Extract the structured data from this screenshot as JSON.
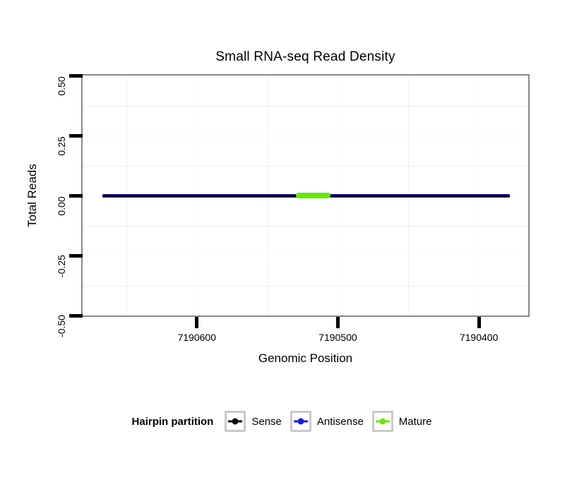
{
  "page": {
    "background": "#ffffff"
  },
  "chart_data": {
    "type": "line",
    "title": "Small RNA-seq Read Density",
    "x_axis": {
      "label": "Genomic Position",
      "reversed": true,
      "range": [
        7190681,
        7190365
      ],
      "ticks": [
        7190600,
        7190500,
        7190400
      ],
      "tick_labels": [
        "7190600",
        "7190500",
        "7190400"
      ],
      "minor_ticks": [
        7190650,
        7190550,
        7190450
      ]
    },
    "y_axis": {
      "label": "Total Reads",
      "range": [
        -0.5,
        0.5
      ],
      "ticks": [
        0.5,
        0.25,
        0.0,
        -0.25,
        -0.5
      ],
      "tick_labels": [
        "0.50",
        "0.25",
        "0.00",
        "-0.25",
        "-0.50"
      ],
      "minor_ticks": [
        0.375,
        0.125,
        -0.125,
        -0.375
      ]
    },
    "series": [
      {
        "name": "Antisense",
        "color_key": "antisense",
        "x_start": 7190667,
        "x_end": 7190378,
        "y": 0,
        "thickness": 5,
        "rounded": false
      },
      {
        "name": "Sense",
        "color_key": "sense",
        "x_start": 7190667,
        "x_end": 7190378,
        "y": 0,
        "thickness": 3,
        "rounded": false
      },
      {
        "name": "Mature",
        "color_key": "mature",
        "x_start": 7190530,
        "x_end": 7190505,
        "y": 0,
        "thickness": 8,
        "rounded": true
      }
    ],
    "grid": {
      "major": true,
      "minor": true
    }
  },
  "legend": {
    "title": "Hairpin partition",
    "position": "bottom",
    "entries": [
      {
        "label": "Sense",
        "color_key": "sense"
      },
      {
        "label": "Antisense",
        "color_key": "antisense"
      },
      {
        "label": "Mature",
        "color_key": "mature"
      }
    ]
  },
  "colors": {
    "sense": "#000000",
    "antisense": "#1a1ae6",
    "mature": "#70e210",
    "panel_border": "#888888",
    "axis_tick": "#000000",
    "grid_major": "#fafafa",
    "grid_minor": "#efefef",
    "legend_key_border": "#c9c9c9",
    "text": "#000000"
  }
}
